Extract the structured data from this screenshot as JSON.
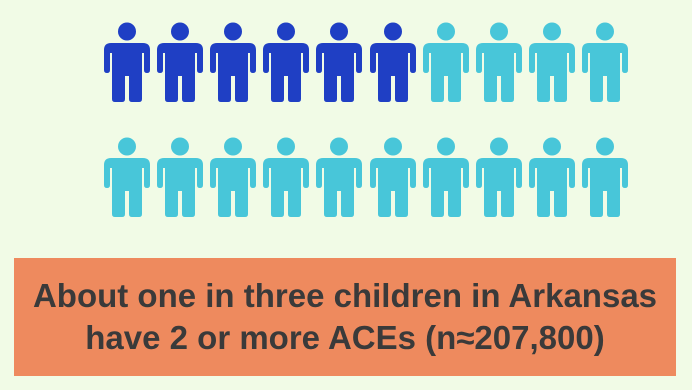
{
  "colors": {
    "background": "#f1fbe6",
    "highlighted_person": "#1f3fc4",
    "other_person": "#48c6d9",
    "banner": "#ee8a5e",
    "banner_text": "#3a3a3a"
  },
  "pictograph": {
    "icon": "person-icon",
    "total": 20,
    "highlighted": 6,
    "per_row": 10
  },
  "banner": {
    "line1": "About one in three children in Arkansas",
    "line2": "have 2 or more ACEs (n≈207,800)"
  }
}
